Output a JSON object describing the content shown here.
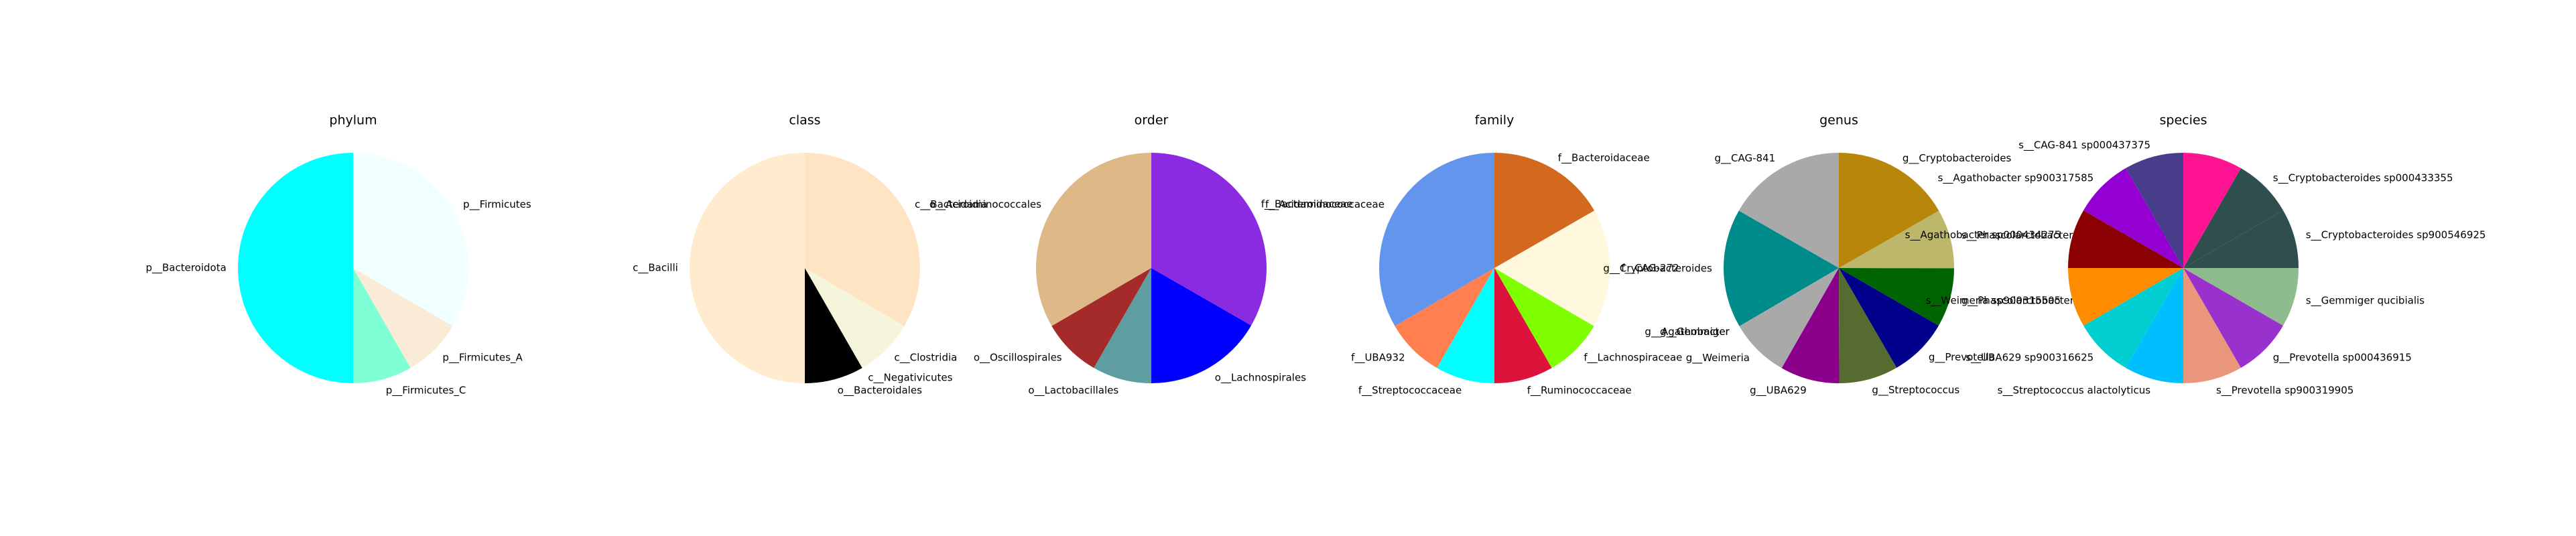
{
  "chart_data": [
    {
      "type": "pie",
      "title": "phylum",
      "slices": [
        {
          "label": "p__Bacteroidota",
          "value": 50.0,
          "color": "#00ffff"
        },
        {
          "label": "p__Firmicutes_C",
          "value": 8.3,
          "color": "#7fffd4"
        },
        {
          "label": "p__Firmicutes_A",
          "value": 8.3,
          "color": "#faebd7"
        },
        {
          "label": "p__Firmicutes",
          "value": 33.4,
          "color": "#f0ffff"
        }
      ]
    },
    {
      "type": "pie",
      "title": "class",
      "slices": [
        {
          "label": "c__Bacilli",
          "value": 50.0,
          "color": "#ffebcd"
        },
        {
          "label": "o__Bacteroidales",
          "value": 8.3,
          "color": "#000000"
        },
        {
          "label": "c__Negativicutes",
          "value": 0,
          "color": "#deb887"
        },
        {
          "label": "c__Clostridia",
          "value": 8.3,
          "color": "#f5f5dc"
        },
        {
          "label": "c__Bacteroidia",
          "value": 33.4,
          "color": "#ffe4c4"
        }
      ]
    },
    {
      "type": "pie",
      "title": "order",
      "slices": [
        {
          "label": "o__Acidaminococcales",
          "value": 33.4,
          "color": "#deb887"
        },
        {
          "label": "o__Oscillospirales",
          "value": 8.3,
          "color": "#a52a2a"
        },
        {
          "label": "o__Lactobacillales",
          "value": 8.3,
          "color": "#5f9ea0"
        },
        {
          "label": "o__Lachnospirales",
          "value": 16.7,
          "color": "#0000ff"
        },
        {
          "label": "f__Bacteroidaceae",
          "value": 33.3,
          "color": "#8a2be2"
        }
      ]
    },
    {
      "type": "pie",
      "title": "family",
      "slices": [
        {
          "label": "f__Acidaminococcaceae",
          "value": 33.4,
          "color": "#6495ed"
        },
        {
          "label": "f__UBA932",
          "value": 8.3,
          "color": "#ff7f50"
        },
        {
          "label": "f__Streptococcaceae",
          "value": 8.3,
          "color": "#00ffff"
        },
        {
          "label": "f__Ruminococcaceae",
          "value": 8.3,
          "color": "#dc143c"
        },
        {
          "label": "f__Lachnospiraceae",
          "value": 8.3,
          "color": "#7fff00"
        },
        {
          "label": "f__CAG-272",
          "value": 16.7,
          "color": "#fff8dc"
        },
        {
          "label": "f__Bacteroidaceae",
          "value": 16.7,
          "color": "#d2691e"
        }
      ]
    },
    {
      "type": "pie",
      "title": "genus",
      "slices": [
        {
          "label": "g__CAG-841",
          "value": 16.7,
          "color": "#a9a9a9"
        },
        {
          "label": "g__Cryptobacteroides",
          "value": 16.7,
          "color": "#008b8b"
        },
        {
          "label": "g__Agathobacter",
          "value": 0,
          "color": "#b8860b"
        },
        {
          "label": "g__Gemmiger",
          "value": 0,
          "color": "#006400"
        },
        {
          "label": "g__Weimeria",
          "value": 8.3,
          "color": "#a9a9a9"
        },
        {
          "label": "g__UBA629",
          "value": 8.3,
          "color": "#8b008b"
        },
        {
          "label": "g__Streptococcus",
          "value": 8.3,
          "color": "#556b2f"
        },
        {
          "label": "g__Prevotella",
          "value": 8.3,
          "color": "#00008b"
        },
        {
          "label": "g__Phascolarctobacterium_A",
          "value": 8.3,
          "color": "#006400"
        },
        {
          "label": "s__Phascolarctobacterium_A succinatutens",
          "value": 8.3,
          "color": "#bdb76b"
        },
        {
          "label": "g__Cryptobacteroides",
          "value": 16.7,
          "color": "#b8860b"
        }
      ]
    },
    {
      "type": "pie",
      "title": "species",
      "slices": [
        {
          "label": "s__CAG-841 sp000437375",
          "value": 8.3,
          "color": "#483d8b"
        },
        {
          "label": "s__Agathobacter sp900317585",
          "value": 8.3,
          "color": "#9400d3"
        },
        {
          "label": "s__Agathobacter sp000434275",
          "value": 8.3,
          "color": "#8b0000"
        },
        {
          "label": "s__Weimeria sp900315505",
          "value": 8.3,
          "color": "#ff8c00"
        },
        {
          "label": "s__UBA629 sp900316625",
          "value": 8.3,
          "color": "#00ced1"
        },
        {
          "label": "s__Streptococcus alactolyticus",
          "value": 8.3,
          "color": "#00bfff"
        },
        {
          "label": "s__Prevotella sp900319905",
          "value": 8.3,
          "color": "#e9967a"
        },
        {
          "label": "g__Prevotella sp000436915",
          "value": 8.3,
          "color": "#9932cc"
        },
        {
          "label": "s__Gemmiger qucibialis",
          "value": 8.3,
          "color": "#8fbc8f"
        },
        {
          "label": "s__Cryptobacteroides sp900546925",
          "value": 8.3,
          "color": "#2f4f4f"
        },
        {
          "label": "s__Cryptobacteroides sp000433355",
          "value": 8.3,
          "color": "#2f4f4f"
        },
        {
          "label": "",
          "value": 8.3,
          "color": "#ff1493"
        }
      ]
    }
  ]
}
